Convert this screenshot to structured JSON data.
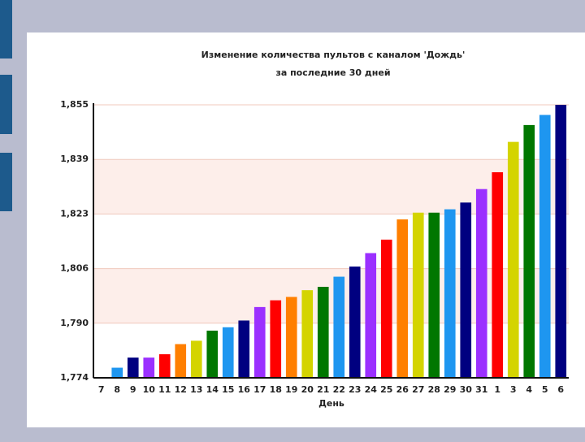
{
  "chart_data": {
    "type": "bar",
    "title": "Изменение количества пультов с каналом 'Дождь'",
    "subtitle": "за последние 30 дней",
    "x_label": "День",
    "categories": [
      "7",
      "8",
      "9",
      "10",
      "11",
      "12",
      "13",
      "14",
      "15",
      "16",
      "17",
      "18",
      "19",
      "20",
      "21",
      "22",
      "23",
      "24",
      "25",
      "26",
      "27",
      "28",
      "29",
      "30",
      "31",
      "1",
      "3",
      "4",
      "5",
      "6"
    ],
    "values": [
      1774,
      1777,
      1780,
      1780,
      1781,
      1784,
      1785,
      1788,
      1789,
      1791,
      1795,
      1797,
      1798,
      1800,
      1801,
      1804,
      1807,
      1811,
      1815,
      1821,
      1823,
      1823,
      1824,
      1826,
      1830,
      1835,
      1844,
      1849,
      1852,
      1855
    ],
    "colors": [
      "#007700",
      "#1e96f0",
      "#000080",
      "#9b30ff",
      "#ff0000",
      "#ff7f00",
      "#d4d400",
      "#007700",
      "#1e96f0",
      "#000080",
      "#9b30ff",
      "#ff0000",
      "#ff7f00",
      "#d4d400",
      "#007700",
      "#1e96f0",
      "#000080",
      "#9b30ff",
      "#ff0000",
      "#ff7f00",
      "#d4d400",
      "#007700",
      "#1e96f0",
      "#000080",
      "#9b30ff",
      "#ff0000",
      "#d4d400",
      "#007700",
      "#1e96f0",
      "#000080"
    ],
    "ylim": [
      1774,
      1855
    ],
    "yticks": [
      {
        "value": 1774,
        "label": "1,774"
      },
      {
        "value": 1790.2,
        "label": "1,790"
      },
      {
        "value": 1806.4,
        "label": "1,806"
      },
      {
        "value": 1822.6,
        "label": "1,823"
      },
      {
        "value": 1838.8,
        "label": "1,839"
      },
      {
        "value": 1855,
        "label": "1,855"
      }
    ],
    "grid": true,
    "band_color": "#fdeeea"
  }
}
